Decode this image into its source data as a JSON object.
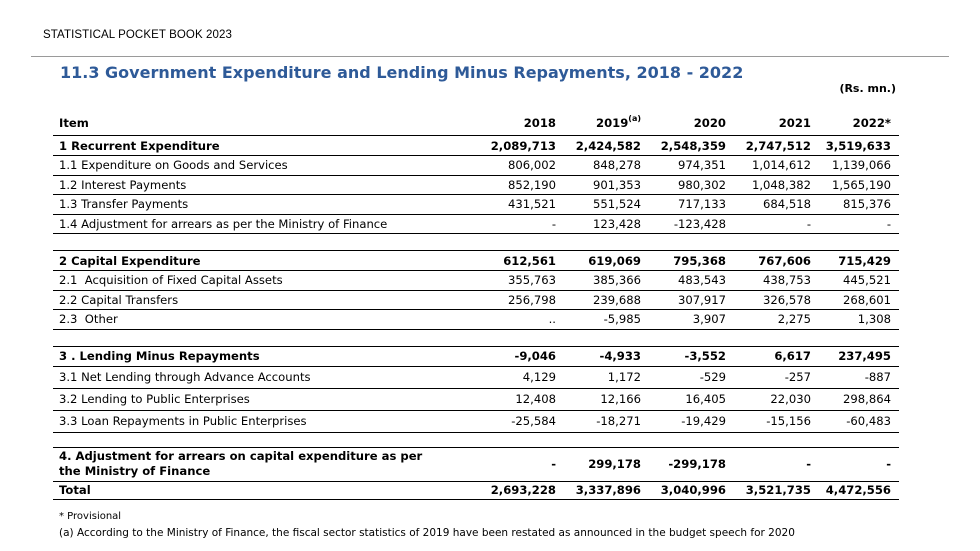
{
  "header": {
    "running_head": "STATISTICAL POCKET BOOK 2023"
  },
  "title": "11.3 Government Expenditure and Lending Minus Repayments, 2018 - 2022",
  "units": "(Rs. mn.)",
  "table": {
    "col_item": "Item",
    "years": [
      "2018",
      "2019",
      "2020",
      "2021",
      "2022*"
    ],
    "year_2019_sup": "(a)",
    "rows": {
      "r1": {
        "label": "1 Recurrent Expenditure",
        "v": [
          "2,089,713",
          "2,424,582",
          "2,548,359",
          "2,747,512",
          "3,519,633"
        ]
      },
      "r11": {
        "label": "1.1 Expenditure on Goods and Services",
        "v": [
          "806,002",
          "848,278",
          "974,351",
          "1,014,612",
          "1,139,066"
        ]
      },
      "r12": {
        "label": "1.2 Interest Payments",
        "v": [
          "852,190",
          "901,353",
          "980,302",
          "1,048,382",
          "1,565,190"
        ]
      },
      "r13": {
        "label": "1.3 Transfer Payments",
        "v": [
          "431,521",
          "551,524",
          "717,133",
          "684,518",
          "815,376"
        ]
      },
      "r14": {
        "label": "1.4 Adjustment for arrears as per the Ministry of Finance",
        "v": [
          "-",
          "123,428",
          "-123,428",
          "-",
          "-"
        ]
      },
      "r2": {
        "label": "2 Capital Expenditure",
        "v": [
          "612,561",
          "619,069",
          "795,368",
          "767,606",
          "715,429"
        ]
      },
      "r21": {
        "label": "2.1  Acquisition of Fixed Capital Assets",
        "v": [
          "355,763",
          "385,366",
          "483,543",
          "438,753",
          "445,521"
        ]
      },
      "r22": {
        "label": "2.2 Capital Transfers",
        "v": [
          "256,798",
          "239,688",
          "307,917",
          "326,578",
          "268,601"
        ]
      },
      "r23": {
        "label": "2.3  Other",
        "v": [
          "..",
          "-5,985",
          "3,907",
          "2,275",
          "1,308"
        ]
      },
      "r3": {
        "label": "3 . Lending Minus Repayments",
        "v": [
          "-9,046",
          "-4,933",
          "-3,552",
          "6,617",
          "237,495"
        ]
      },
      "r31": {
        "label": "3.1 Net Lending through Advance Accounts",
        "v": [
          "4,129",
          "1,172",
          "-529",
          "-257",
          "-887"
        ]
      },
      "r32": {
        "label": "3.2 Lending to Public Enterprises",
        "v": [
          "12,408",
          "12,166",
          "16,405",
          "22,030",
          "298,864"
        ]
      },
      "r33": {
        "label": "3.3 Loan Repayments in Public Enterprises",
        "v": [
          "-25,584",
          "-18,271",
          "-19,429",
          "-15,156",
          "-60,483"
        ]
      },
      "r4": {
        "label": "4. Adjustment for arrears on capital expenditure as per the Ministry of Finance",
        "v": [
          "-",
          "299,178",
          "-299,178",
          "-",
          "-"
        ]
      },
      "total": {
        "label": "Total",
        "v": [
          "2,693,228",
          "3,337,896",
          "3,040,996",
          "3,521,735",
          "4,472,556"
        ]
      }
    }
  },
  "footnotes": {
    "provisional": "* Provisional",
    "note_a": "(a) According to the Ministry of Finance, the fiscal sector statistics of 2019 have been restated as announced in the budget speech for 2020"
  }
}
